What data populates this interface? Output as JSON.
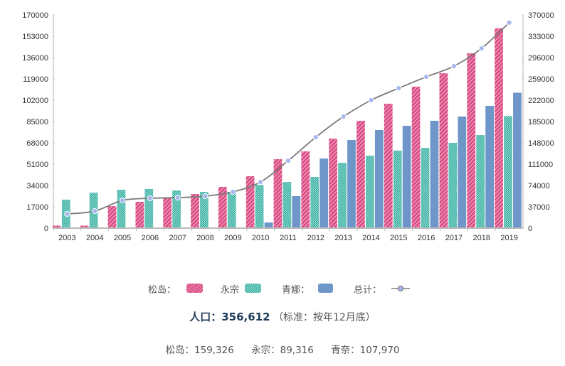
{
  "colors": {
    "songdo": "#d94a82",
    "yeongjong": "#27a596",
    "cheongna": "#6e96c8",
    "total_line": "#7a7a7a",
    "total_point": "#a8b8ee"
  },
  "legend": {
    "songdo": "松岛：",
    "yeongjong": "永宗",
    "cheongna": "青娜：",
    "total": "总计："
  },
  "summary": {
    "label": "人口：",
    "value": "356,612",
    "note": "（标准：按年12月底）",
    "songdo": "松岛：159,326",
    "yeongjong": "永宗：89,316",
    "cheongna": "青奈：107,970"
  },
  "chart_data": {
    "type": "bar",
    "categories": [
      "2003",
      "2004",
      "2005",
      "2006",
      "2007",
      "2008",
      "2009",
      "2010",
      "2011",
      "2012",
      "2013",
      "2014",
      "2015",
      "2016",
      "2017",
      "2018",
      "2019"
    ],
    "series": [
      {
        "name": "松岛",
        "axis": "left",
        "values": [
          2000,
          2000,
          17500,
          21000,
          23800,
          27200,
          32900,
          41400,
          55000,
          61200,
          71400,
          85600,
          99200,
          112800,
          123500,
          139400,
          159326
        ]
      },
      {
        "name": "永宗",
        "axis": "left",
        "values": [
          22700,
          28300,
          30600,
          31200,
          30000,
          28900,
          28900,
          34500,
          36800,
          40800,
          52100,
          57800,
          61800,
          64000,
          68000,
          74200,
          89316
        ]
      },
      {
        "name": "青娜",
        "axis": "left",
        "values": [
          0,
          0,
          0,
          0,
          0,
          0,
          0,
          4500,
          25500,
          55500,
          70300,
          78200,
          81600,
          85600,
          89000,
          97500,
          107970
        ]
      },
      {
        "name": "总计",
        "type": "line",
        "axis": "right",
        "values": [
          24700,
          29600,
          48100,
          51800,
          53000,
          55500,
          62900,
          80100,
          117100,
          157800,
          193600,
          222000,
          242900,
          262600,
          281100,
          312000,
          356612
        ]
      }
    ],
    "y_left": {
      "ticks": [
        "0",
        "17000",
        "34000",
        "51000",
        "68000",
        "85000",
        "102000",
        "119000",
        "136000",
        "153000",
        "170000"
      ],
      "range": [
        0,
        170000
      ]
    },
    "y_right": {
      "ticks": [
        "0",
        "37000",
        "74000",
        "111000",
        "148000",
        "185000",
        "222000",
        "259000",
        "296000",
        "333000",
        "370000"
      ],
      "range": [
        0,
        370000
      ]
    },
    "grid": false,
    "legend_position": "bottom"
  }
}
